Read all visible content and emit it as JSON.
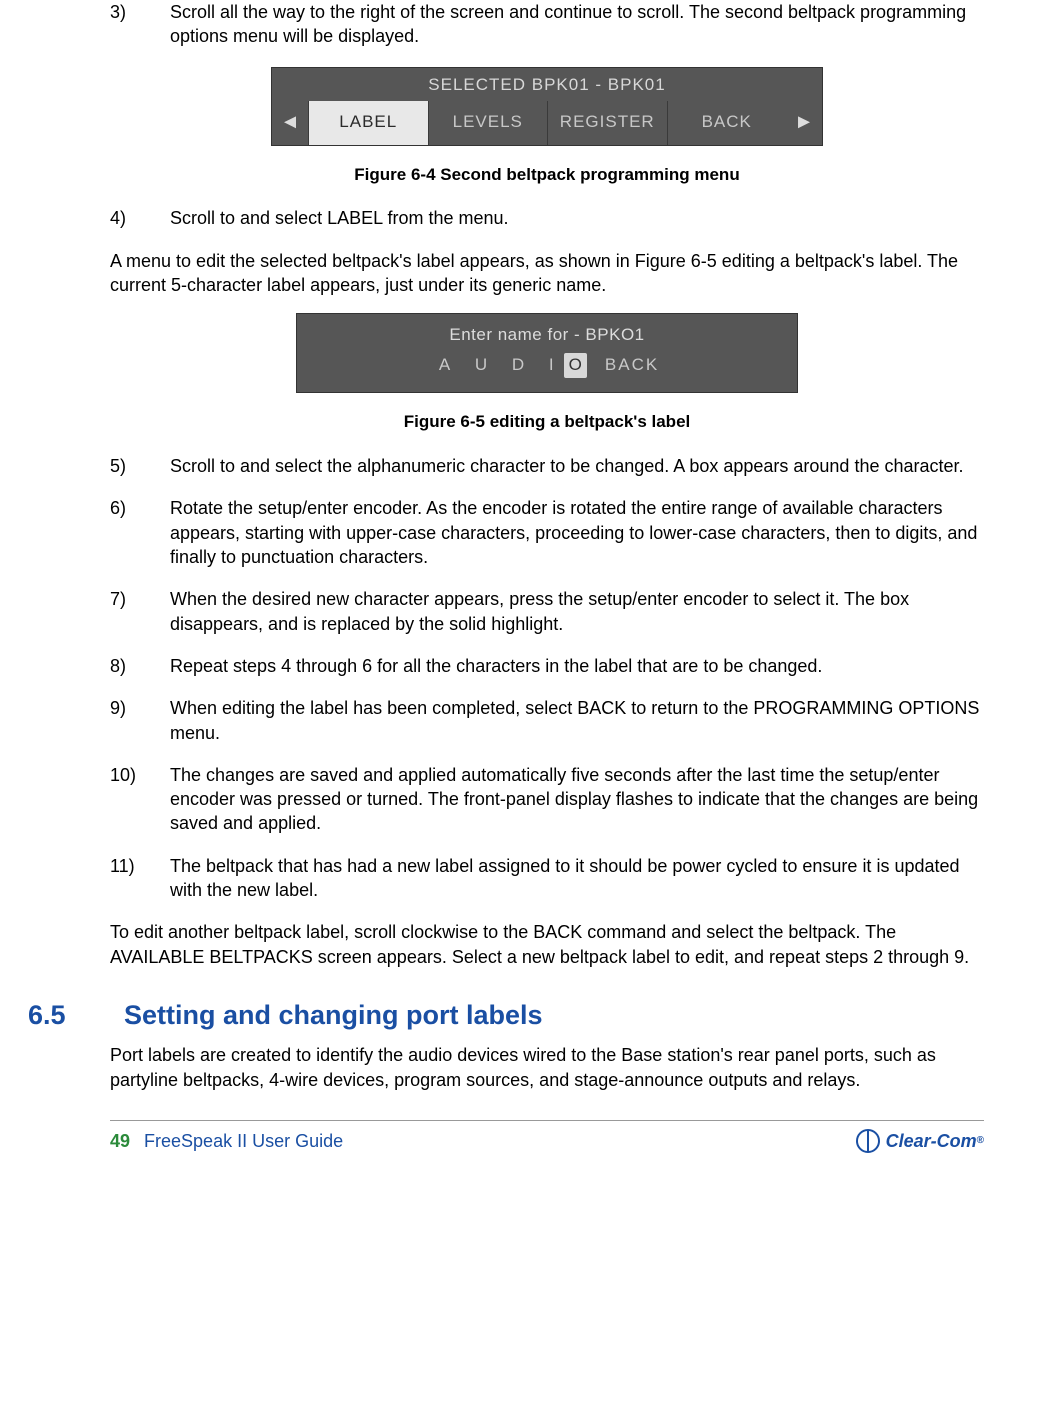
{
  "steps": {
    "s3": {
      "num": "3)",
      "text": "Scroll all the way to the right of the screen and continue to scroll. The second beltpack programming options menu will be displayed."
    },
    "s4": {
      "num": "4)",
      "text": "Scroll to and select LABEL from the menu."
    },
    "s5": {
      "num": "5)",
      "text": "Scroll to and select the alphanumeric character to be changed. A box appears around the character."
    },
    "s6": {
      "num": "6)",
      "text": "Rotate the setup/enter encoder. As the encoder is rotated the entire range of available characters appears, starting with upper-case characters, proceeding to lower-case characters, then to digits, and finally to punctuation characters."
    },
    "s7": {
      "num": "7)",
      "text": "When the desired new character appears, press the setup/enter encoder to select it. The box disappears, and is replaced by the solid highlight."
    },
    "s8": {
      "num": "8)",
      "text": "Repeat steps 4 through 6 for all the characters in the label that are to be changed."
    },
    "s9": {
      "num": "9)",
      "text": "When editing the label has been completed, select BACK to return to the PROGRAMMING OPTIONS menu."
    },
    "s10": {
      "num": "10)",
      "text": "The changes are saved and applied automatically five seconds after the last time the setup/enter encoder was pressed or turned. The front-panel display flashes to indicate that the changes are being saved and applied."
    },
    "s11": {
      "num": "11)",
      "text": "The beltpack that has had a new label assigned to it should be power cycled to ensure it is updated with the new label."
    }
  },
  "para_after_s4": "A menu to edit the selected beltpack's label appears, as shown in Figure 6-5 editing a beltpack's label. The current 5-character label appears, just under its generic name.",
  "para_after_s11": "To edit another beltpack label, scroll clockwise to the BACK command and select the beltpack. The AVAILABLE BELTPACKS screen appears. Select a new beltpack label to edit, and repeat steps 2 through 9.",
  "figure1": {
    "title": "SELECTED BPK01 - BPK01",
    "tabs": [
      "LABEL",
      "LEVELS",
      "REGISTER",
      "BACK"
    ],
    "arrow_left": "◄",
    "arrow_right": "►",
    "caption": "Figure 6-4 Second beltpack programming menu"
  },
  "figure2": {
    "line1": "Enter name for - BPKO1",
    "chars": [
      "A",
      "U",
      "D",
      "I"
    ],
    "selected_char": "O",
    "back": "BACK",
    "caption": "Figure 6-5 editing a beltpack's label"
  },
  "section": {
    "num": "6.5",
    "title": "Setting and changing port labels",
    "body": "Port labels are created to identify the audio devices wired to the Base station's rear panel ports, such as partyline beltpacks, 4-wire devices, program sources, and stage-announce outputs and relays."
  },
  "footer": {
    "page": "49",
    "title": "FreeSpeak II User Guide",
    "brand": "Clear-Com",
    "reg": "®"
  },
  "colors": {
    "heading": "#1a4fa3",
    "page_num": "#2a8a3a",
    "screen_bg": "#565656"
  }
}
